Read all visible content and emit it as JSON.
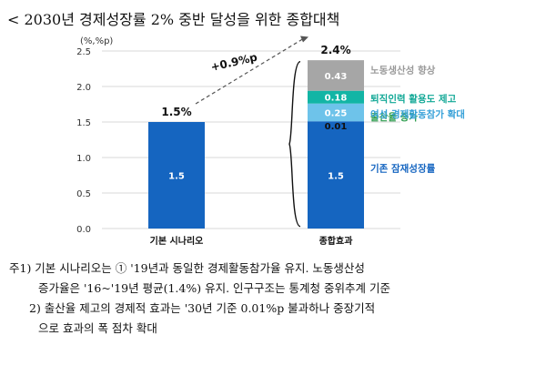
{
  "heading": "< 2030년 경제성장률 2% 중반 달성을 위한 종합대책",
  "chart_data": {
    "type": "bar",
    "unit": "(%,%p)",
    "ylim": [
      0,
      2.5
    ],
    "yticks": [
      "0.0",
      "0.5",
      "1.0",
      "1.5",
      "2.0",
      "2.5"
    ],
    "categories": [
      "기본 시나리오",
      "종합효과"
    ],
    "totals": [
      "1.5%",
      "2.4%"
    ],
    "arrow_label": "+0.9%p",
    "series": [
      {
        "name": "기존 잠재성장률",
        "values": [
          1.5,
          1.5
        ],
        "labels": [
          "1.5",
          "1.5"
        ],
        "color": "#1565c0",
        "label_color": "#1565c0"
      },
      {
        "name": "출산율 증가",
        "values": [
          0,
          0.01
        ],
        "labels": [
          "",
          "0.01"
        ],
        "color": "#1565c0",
        "label_color": "#2e9e4f"
      },
      {
        "name": "여성 경제활동참가 확대",
        "values": [
          0,
          0.25
        ],
        "labels": [
          "",
          "0.25"
        ],
        "color": "#6ec3ea",
        "label_color": "#35a0d8"
      },
      {
        "name": "퇴직인력 활용도 제고",
        "values": [
          0,
          0.18
        ],
        "labels": [
          "",
          "0.18"
        ],
        "color": "#12b5a5",
        "label_color": "#12a896"
      },
      {
        "name": "노동생산성 향상",
        "values": [
          0,
          0.43
        ],
        "labels": [
          "",
          "0.43"
        ],
        "color": "#a6a6a6",
        "label_color": "#9a9a9a"
      }
    ]
  },
  "notes": [
    "주1) 기본 시나리오는 ① '19년과 동일한 경제활동참가율 유지. 노동생산성",
    "증가율은 '16~'19년 평균(1.4%) 유지. 인구구조는 통계청 중위추계 기준",
    "2) 출산율 제고의 경제적 효과는 '30년 기준 0.01%p 불과하나 중장기적",
    "으로 효과의 폭 점차 확대"
  ]
}
